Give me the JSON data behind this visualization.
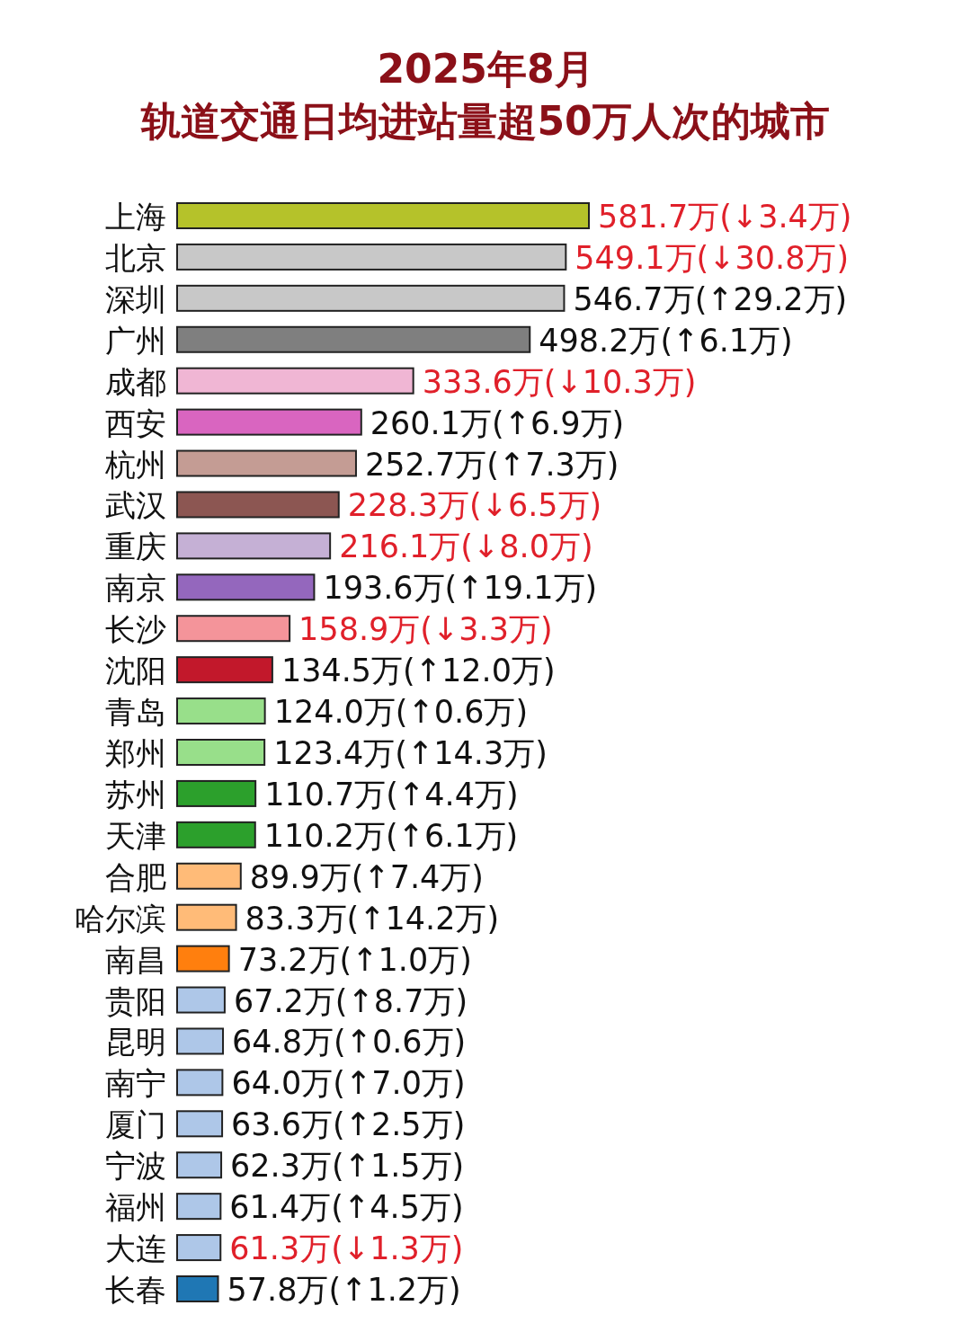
{
  "chart_data": {
    "type": "bar",
    "orientation": "horizontal",
    "title": "2025年8月",
    "subtitle": "轨道交通日均进站量超50万人次的城市",
    "categories": [
      "上海",
      "北京",
      "深圳",
      "广州",
      "成都",
      "西安",
      "杭州",
      "武汉",
      "重庆",
      "南京",
      "长沙",
      "沈阳",
      "青岛",
      "郑州",
      "苏州",
      "天津",
      "合肥",
      "哈尔滨",
      "南昌",
      "贵阳",
      "昆明",
      "南宁",
      "厦门",
      "宁波",
      "福州",
      "大连",
      "长春"
    ],
    "values": [
      581.7,
      549.1,
      546.7,
      498.2,
      333.6,
      260.1,
      252.7,
      228.3,
      216.1,
      193.6,
      158.9,
      134.5,
      124.0,
      123.4,
      110.7,
      110.2,
      89.9,
      83.3,
      73.2,
      67.2,
      64.8,
      64.0,
      63.6,
      62.3,
      61.4,
      61.3,
      57.8
    ],
    "value_labels": [
      "581.7万(↓3.4万)",
      "549.1万(↓30.8万)",
      "546.7万(↑29.2万)",
      "498.2万(↑6.1万)",
      "333.6万(↓10.3万)",
      "260.1万(↑6.9万)",
      "252.7万(↑7.3万)",
      "228.3万(↓6.5万)",
      "216.1万(↓8.0万)",
      "193.6万(↑19.1万)",
      "158.9万(↓3.3万)",
      "134.5万(↑12.0万)",
      "124.0万(↑0.6万)",
      "123.4万(↑14.3万)",
      "110.7万(↑4.4万)",
      "110.2万(↑6.1万)",
      "89.9万(↑7.4万)",
      "83.3万(↑14.2万)",
      "73.2万(↑1.0万)",
      "67.2万(↑8.7万)",
      "64.8万(↑0.6万)",
      "64.0万(↑7.0万)",
      "63.6万(↑2.5万)",
      "62.3万(↑1.5万)",
      "61.4万(↑4.5万)",
      "61.3万(↓1.3万)",
      "57.8万(↑1.2万)"
    ],
    "colors": [
      "#b5c22a",
      "#c8c8c8",
      "#c8c8c8",
      "#7f7f7f",
      "#f0b6d4",
      "#d965c0",
      "#c49c94",
      "#8c5652",
      "#c5b0d5",
      "#9467bd",
      "#f4949a",
      "#c2182b",
      "#98df8a",
      "#98df8a",
      "#2ca02c",
      "#2ca02c",
      "#ffbb78",
      "#ffbb78",
      "#ff7f0e",
      "#aec7e8",
      "#aec7e8",
      "#aec7e8",
      "#aec7e8",
      "#aec7e8",
      "#aec7e8",
      "#aec7e8",
      "#1f77b4"
    ]
  }
}
